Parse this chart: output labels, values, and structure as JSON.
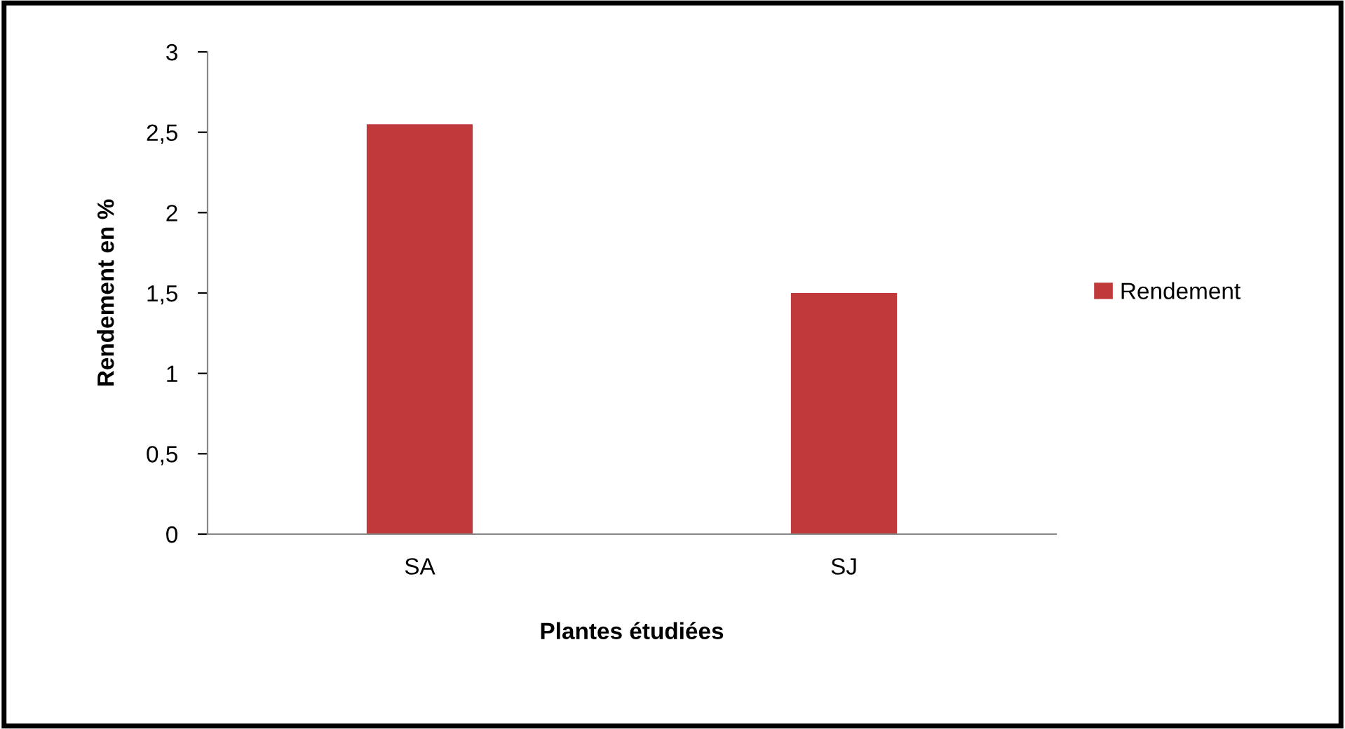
{
  "chart_data": {
    "type": "bar",
    "xlabel": "Plantes étudiées",
    "ylabel": "Rendement en %",
    "categories": [
      "SA",
      "SJ"
    ],
    "series": [
      {
        "name": "Rendement",
        "color": "#c0393b",
        "values": [
          2.55,
          1.5
        ]
      }
    ],
    "ylim": [
      0,
      3
    ],
    "yticks": [
      0,
      {
        "value": 0.5,
        "label": "0,5"
      },
      1,
      {
        "value": 1.5,
        "label": "1,5"
      },
      2,
      {
        "value": 2.5,
        "label": "2,5"
      },
      3
    ],
    "grid": false,
    "legend": "right"
  }
}
